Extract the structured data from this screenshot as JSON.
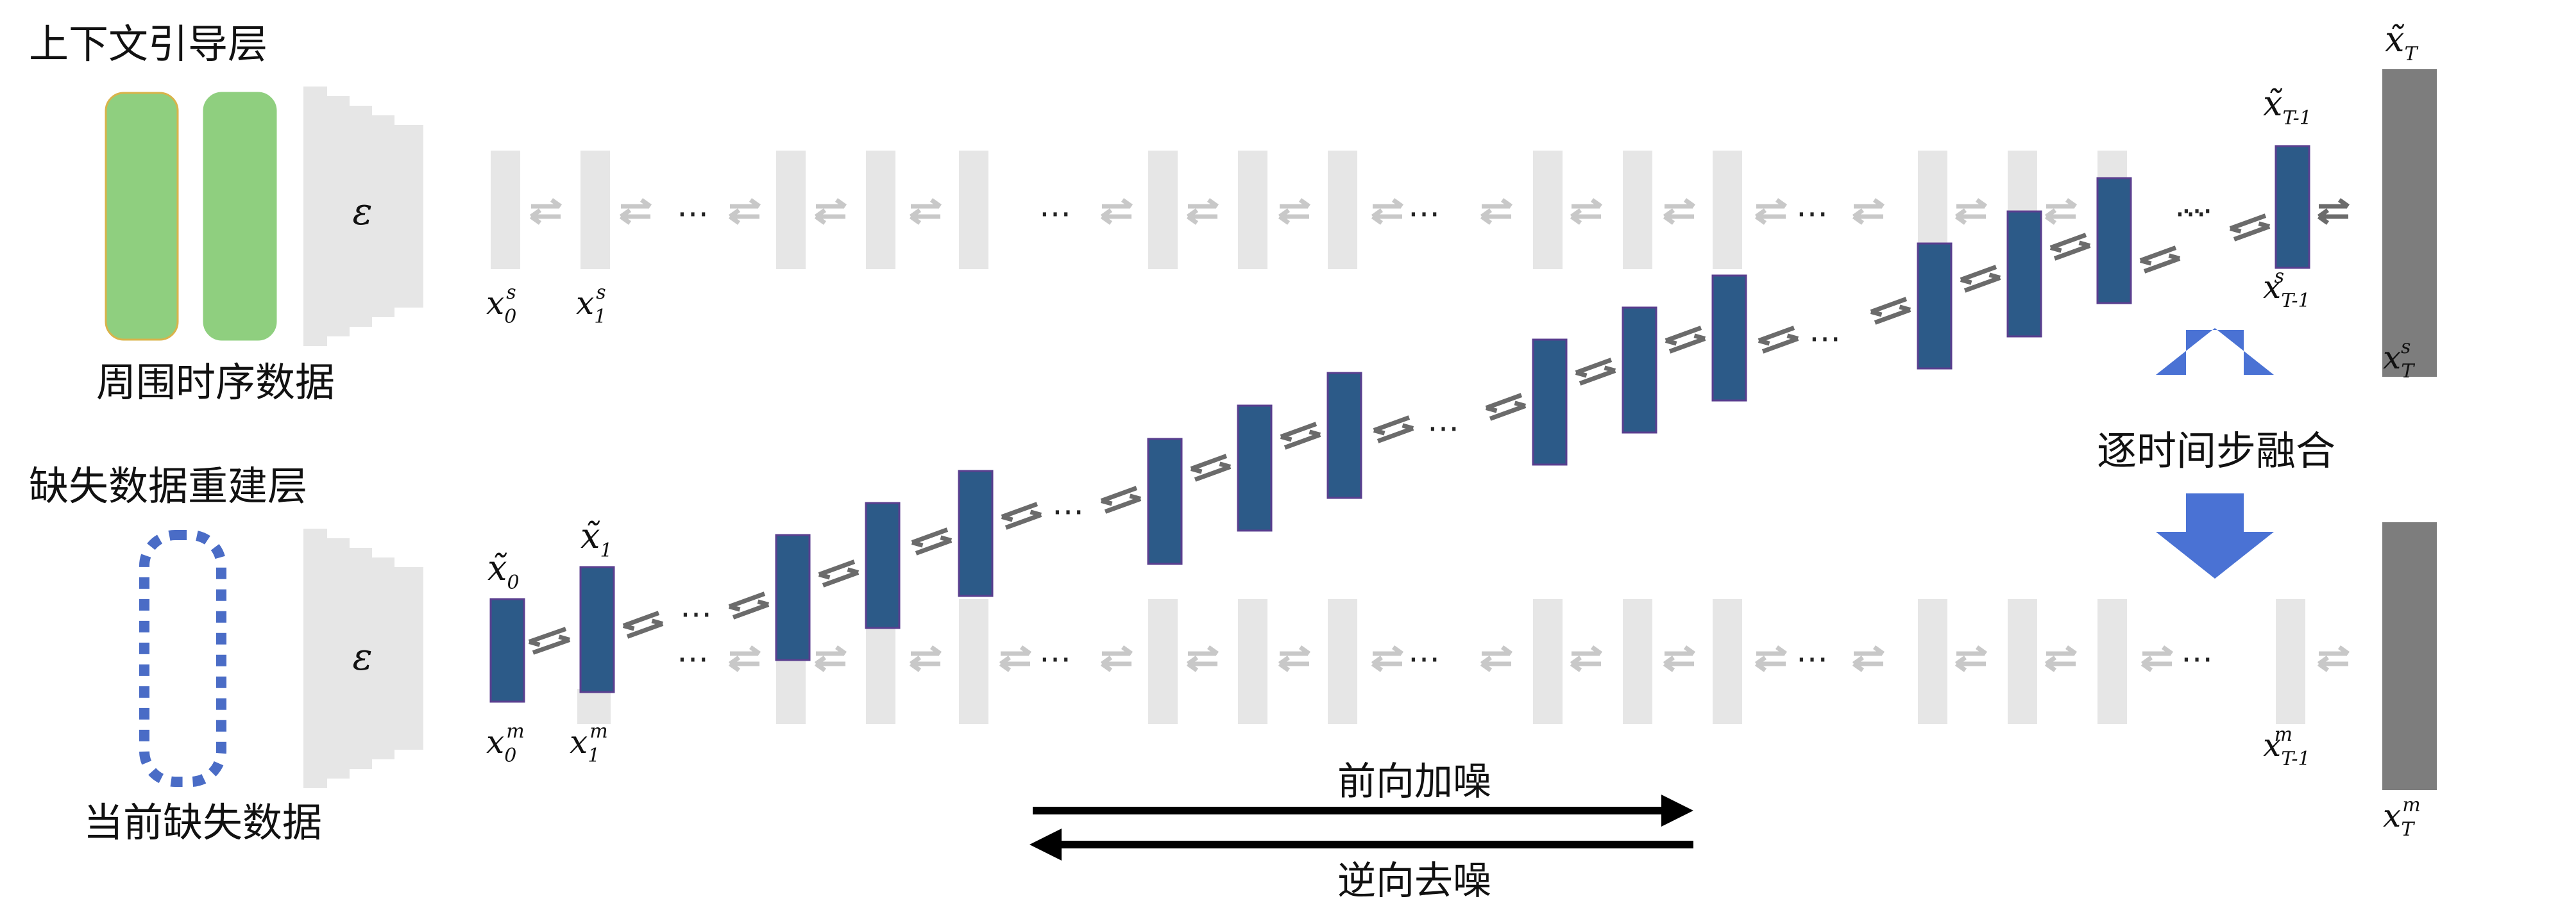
{
  "labels": {
    "context_layer": "上下文引导层",
    "context_input": "周围时序数据",
    "missing_layer": "缺失数据重建层",
    "missing_input": "当前缺失数据",
    "encoder": "ε",
    "fusion": "逐时间步融合",
    "forward": "前向加噪",
    "reverse": "逆向去噪",
    "ellipsis": "⋯"
  },
  "math": {
    "xs0": "x",
    "xs0_sub": "0",
    "xs0_sup": "s",
    "xs1": "x",
    "xs1_sub": "1",
    "xs1_sup": "s",
    "xsT1": "x",
    "xsT1_sub": "T-1",
    "xsT1_sup": "s",
    "xsT": "x",
    "xsT_sub": "T",
    "xsT_sup": "s",
    "xm0": "x",
    "xm0_sub": "0",
    "xm0_sup": "m",
    "xm1": "x",
    "xm1_sub": "1",
    "xm1_sup": "m",
    "xmT1": "x",
    "xmT1_sub": "T-1",
    "xmT1_sup": "m",
    "xmT": "x",
    "xmT_sub": "T",
    "xmT_sup": "m",
    "xt0": "x̃",
    "xt0_sub": "0",
    "xt1": "x̃",
    "xt1_sub": "1",
    "xtT1": "x̃",
    "xtT1_sub": "T-1",
    "xtT": "x̃",
    "xtT_sub": "T"
  },
  "colors": {
    "green_block": "#8fcf7f",
    "blue_bar": "#2c5a88",
    "blue_bar_edge": "#5a3f8f",
    "gray_bar": "#e6e6e6",
    "arrow_light": "#c8c8c8",
    "arrow_dark": "#6b6b6b",
    "noise_bar": "#7d7d7d",
    "fusion_arrow": "#4a72d4",
    "dashed_outline": "#4a6cc6"
  }
}
